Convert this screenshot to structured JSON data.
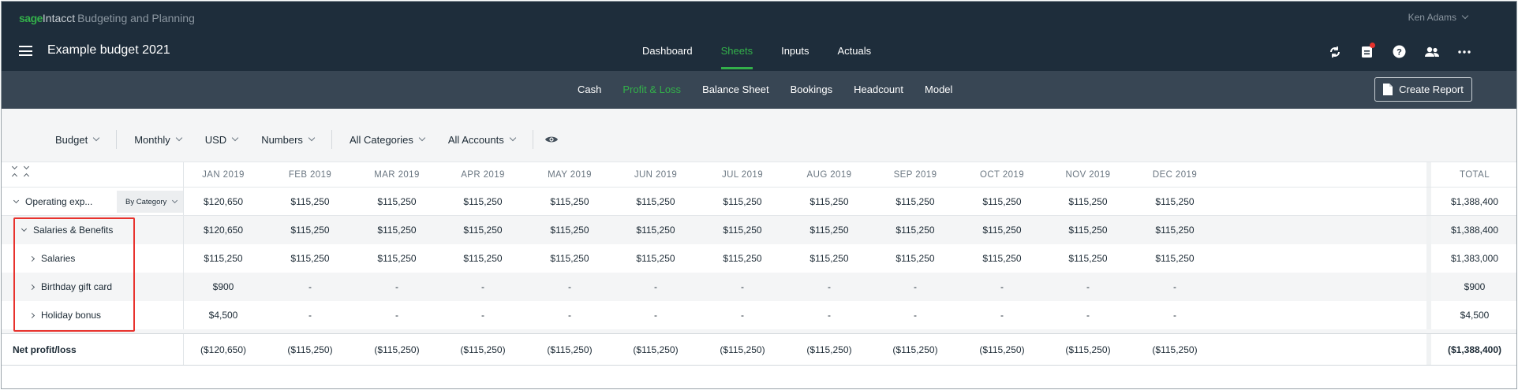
{
  "brand": {
    "sage": "sage",
    "intacct": "Intacct",
    "product": "Budgeting and Planning"
  },
  "user": {
    "name": "Ken Adams"
  },
  "header": {
    "title": "Example budget 2021"
  },
  "main_nav": [
    {
      "label": "Dashboard",
      "active": false
    },
    {
      "label": "Sheets",
      "active": true
    },
    {
      "label": "Inputs",
      "active": false
    },
    {
      "label": "Actuals",
      "active": false
    }
  ],
  "top_icons": [
    "sync-icon",
    "clipboard-icon",
    "help-icon",
    "users-icon",
    "more-icon"
  ],
  "sub_nav": [
    {
      "label": "Cash",
      "active": false
    },
    {
      "label": "Profit & Loss",
      "active": true
    },
    {
      "label": "Balance Sheet",
      "active": false
    },
    {
      "label": "Bookings",
      "active": false
    },
    {
      "label": "Headcount",
      "active": false
    },
    {
      "label": "Model",
      "active": false
    }
  ],
  "create_report": {
    "label": "Create Report"
  },
  "filters": {
    "scenario": "Budget",
    "period": "Monthly",
    "currency": "USD",
    "format": "Numbers",
    "categories": "All Categories",
    "accounts": "All Accounts"
  },
  "table": {
    "months": [
      "JAN 2019",
      "FEB 2019",
      "MAR 2019",
      "APR 2019",
      "MAY 2019",
      "JUN 2019",
      "JUL 2019",
      "AUG 2019",
      "SEP 2019",
      "OCT 2019",
      "NOV 2019",
      "DEC 2019"
    ],
    "total_label": "TOTAL",
    "rows": {
      "operating": {
        "label": "Operating exp...",
        "group_by": "By Category",
        "values": [
          "$120,650",
          "$115,250",
          "$115,250",
          "$115,250",
          "$115,250",
          "$115,250",
          "$115,250",
          "$115,250",
          "$115,250",
          "$115,250",
          "$115,250",
          "$115,250"
        ],
        "total": "$1,388,400"
      },
      "salaries_benefits": {
        "label": "Salaries & Benefits",
        "values": [
          "$120,650",
          "$115,250",
          "$115,250",
          "$115,250",
          "$115,250",
          "$115,250",
          "$115,250",
          "$115,250",
          "$115,250",
          "$115,250",
          "$115,250",
          "$115,250"
        ],
        "total": "$1,388,400"
      },
      "salaries": {
        "label": "Salaries",
        "values": [
          "$115,250",
          "$115,250",
          "$115,250",
          "$115,250",
          "$115,250",
          "$115,250",
          "$115,250",
          "$115,250",
          "$115,250",
          "$115,250",
          "$115,250",
          "$115,250"
        ],
        "total": "$1,383,000"
      },
      "birthday": {
        "label": "Birthday gift card",
        "values": [
          "$900",
          "-",
          "-",
          "-",
          "-",
          "-",
          "-",
          "-",
          "-",
          "-",
          "-",
          "-"
        ],
        "total": "$900"
      },
      "holiday": {
        "label": "Holiday bonus",
        "values": [
          "$4,500",
          "-",
          "-",
          "-",
          "-",
          "-",
          "-",
          "-",
          "-",
          "-",
          "-",
          "-"
        ],
        "total": "$4,500"
      },
      "net": {
        "label": "Net profit/loss",
        "values": [
          "($120,650)",
          "($115,250)",
          "($115,250)",
          "($115,250)",
          "($115,250)",
          "($115,250)",
          "($115,250)",
          "($115,250)",
          "($115,250)",
          "($115,250)",
          "($115,250)",
          "($115,250)"
        ],
        "total": "($1,388,400)"
      }
    }
  },
  "colors": {
    "accent": "#33b04a",
    "topbar": "#1e2d3b",
    "subbar": "#384654",
    "highlight": "#e8322d"
  }
}
